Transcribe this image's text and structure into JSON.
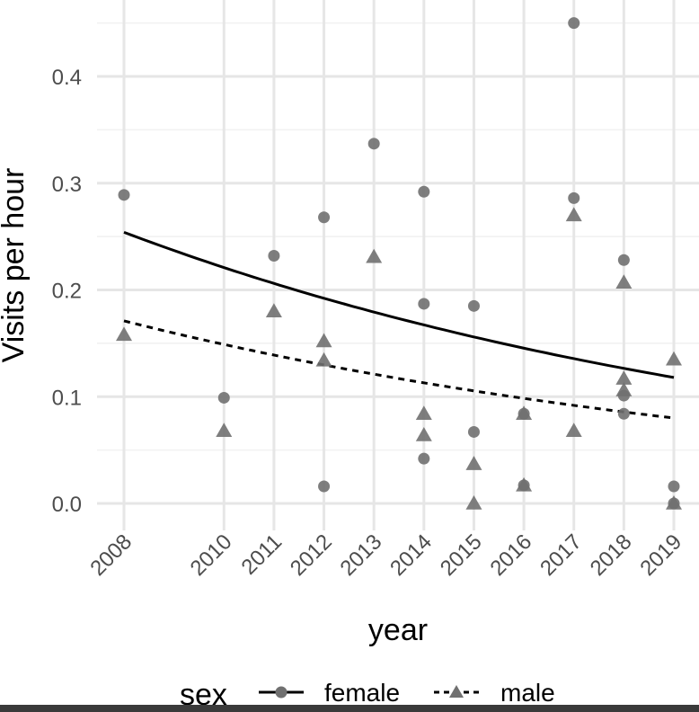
{
  "chart_data": {
    "type": "scatter",
    "xlabel": "year",
    "ylabel": "Visits per hour",
    "xlim": [
      2007.6,
      2019.4
    ],
    "ylim": [
      -0.025,
      0.47
    ],
    "x_ticks": [
      2008,
      2010,
      2011,
      2012,
      2013,
      2014,
      2015,
      2016,
      2017,
      2018,
      2019
    ],
    "y_ticks": [
      0.0,
      0.1,
      0.2,
      0.3,
      0.4
    ],
    "y_tick_labels": [
      "0.0",
      "0.1",
      "0.2",
      "0.3",
      "0.4"
    ],
    "grid": true,
    "legend": {
      "title": "sex",
      "position": "bottom"
    },
    "series": [
      {
        "name": "female",
        "marker": "circle",
        "line_style": "solid",
        "color": "#707070",
        "line_color": "#000000",
        "points": [
          [
            2008,
            0.289
          ],
          [
            2010,
            0.099
          ],
          [
            2011,
            0.232
          ],
          [
            2012,
            0.268
          ],
          [
            2012,
            0.016
          ],
          [
            2013,
            0.337
          ],
          [
            2014,
            0.292
          ],
          [
            2014,
            0.187
          ],
          [
            2014,
            0.042
          ],
          [
            2015,
            0.185
          ],
          [
            2015,
            0.067
          ],
          [
            2016,
            0.084
          ],
          [
            2016,
            0.017
          ],
          [
            2017,
            0.45
          ],
          [
            2017,
            0.286
          ],
          [
            2018,
            0.228
          ],
          [
            2018,
            0.101
          ],
          [
            2018,
            0.084
          ],
          [
            2019,
            0.016
          ],
          [
            2019,
            0.0
          ]
        ],
        "fit": [
          [
            2008,
            0.254
          ],
          [
            2019,
            0.118
          ]
        ]
      },
      {
        "name": "male",
        "marker": "triangle",
        "line_style": "dashed",
        "color": "#707070",
        "line_color": "#000000",
        "points": [
          [
            2008,
            0.158
          ],
          [
            2010,
            0.068
          ],
          [
            2011,
            0.18
          ],
          [
            2012,
            0.152
          ],
          [
            2012,
            0.134
          ],
          [
            2013,
            0.231
          ],
          [
            2014,
            0.084
          ],
          [
            2014,
            0.064
          ],
          [
            2015,
            0.037
          ],
          [
            2015,
            0.0
          ],
          [
            2016,
            0.084
          ],
          [
            2016,
            0.017
          ],
          [
            2017,
            0.27
          ],
          [
            2017,
            0.068
          ],
          [
            2018,
            0.207
          ],
          [
            2018,
            0.117
          ],
          [
            2018,
            0.106
          ],
          [
            2019,
            0.135
          ],
          [
            2019,
            0.0
          ]
        ],
        "fit": [
          [
            2008,
            0.171
          ],
          [
            2019,
            0.08
          ]
        ]
      }
    ]
  }
}
